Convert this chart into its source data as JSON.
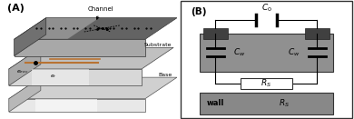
{
  "bg_color": "#ffffff",
  "panel_A_label": "(A)",
  "panel_B_label": "(B)",
  "channel_label": "Channel",
  "substrate_label": "Substrate",
  "base_label": "Base",
  "wall_label": "wall",
  "C0_label": "$C_0$",
  "Cw_label": "$C_w$",
  "Rs_label": "$R_S$",
  "eexc_label": "$e_{exc}$",
  "er_label": "$e_r$",
  "slab_top_face": "#a0a0a0",
  "slab_top_dark": "#606060",
  "slab_mid_face": "#c8c8c8",
  "slab_mid_shine": "#e8e8e8",
  "slab_mid_side": "#a8a8a8",
  "slab_bot_face": "#d8d8d8",
  "slab_bot_shine": "#f0f0f0",
  "slab_bot_side": "#b0b0b0",
  "electrode_color": "#b87333",
  "gray_band": "#909090",
  "gray_wall": "#888888",
  "dark_block": "#404040",
  "wire_color": "#000000",
  "border_color": "#333333"
}
